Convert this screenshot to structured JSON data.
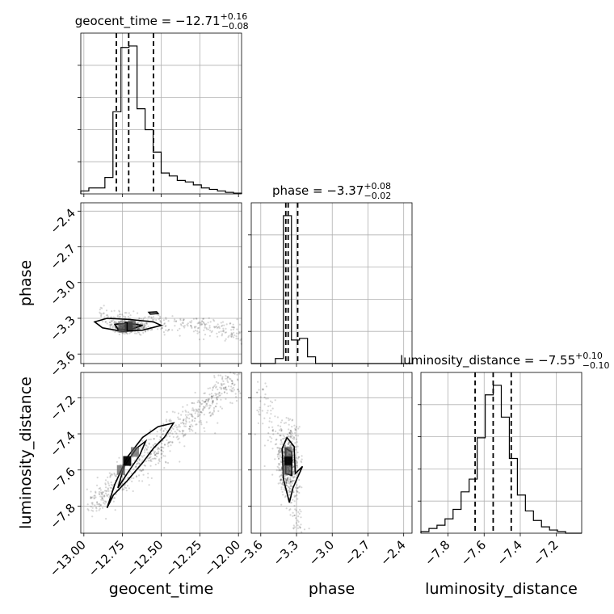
{
  "chart_data": {
    "type": "corner",
    "parameters": [
      "geocent_time",
      "phase",
      "luminosity_distance"
    ],
    "axis_ranges": {
      "geocent_time": [
        -13.02,
        -11.98
      ],
      "phase": [
        -3.68,
        -2.33
      ],
      "luminosity_distance": [
        -7.95,
        -7.06
      ]
    },
    "ticks": {
      "geocent_time": [
        -13.0,
        -12.75,
        -12.5,
        -12.25,
        -12.0
      ],
      "phase": [
        -3.6,
        -3.3,
        -3.0,
        -2.7,
        -2.4
      ],
      "luminosity_distance": [
        -7.8,
        -7.6,
        -7.4,
        -7.2
      ]
    },
    "tick_labels": {
      "geocent_time": [
        "−13.00",
        "−12.75",
        "−12.50",
        "−12.25",
        "−12.00"
      ],
      "phase": [
        "−3.6",
        "−3.3",
        "−3.0",
        "−2.7",
        "−2.4"
      ],
      "luminosity_distance": [
        "−7.8",
        "−7.6",
        "−7.4",
        "−7.2"
      ]
    },
    "axis_labels": {
      "geocent_time": "geocent_time",
      "phase": "phase",
      "luminosity_distance": "luminosity_distance"
    },
    "titles": [
      {
        "param": "geocent_time",
        "prefix": "geocent_time = −12.71",
        "plus": "+0.16",
        "minus": "−0.08"
      },
      {
        "param": "phase",
        "prefix": "phase = −3.37",
        "plus": "+0.08",
        "minus": "−0.02"
      },
      {
        "param": "luminosity_distance",
        "prefix": "luminosity_distance = −7.55",
        "plus": "+0.10",
        "minus": "−0.10"
      }
    ],
    "quantiles": {
      "geocent_time": [
        -12.79,
        -12.71,
        -12.55
      ],
      "phase": [
        -3.39,
        -3.37,
        -3.29
      ],
      "luminosity_distance": [
        -7.65,
        -7.55,
        -7.45
      ]
    },
    "histograms": {
      "geocent_time": {
        "bin_edges": [
          -13.02,
          -12.968,
          -12.916,
          -12.864,
          -12.812,
          -12.76,
          -12.708,
          -12.656,
          -12.604,
          -12.552,
          -12.5,
          -12.448,
          -12.396,
          -12.344,
          -12.292,
          -12.24,
          -12.188,
          -12.136,
          -12.084,
          -12.032,
          -11.98
        ],
        "counts": [
          0.02,
          0.04,
          0.04,
          0.11,
          0.55,
          0.98,
          0.99,
          0.57,
          0.43,
          0.28,
          0.14,
          0.12,
          0.09,
          0.08,
          0.06,
          0.04,
          0.03,
          0.02,
          0.01,
          0.005
        ]
      },
      "phase": {
        "bin_edges": [
          -3.68,
          -3.6125,
          -3.545,
          -3.4775,
          -3.41,
          -3.3425,
          -3.275,
          -3.2075,
          -3.14,
          -3.0725,
          -3.005,
          -2.9375,
          -2.87,
          -2.8025,
          -2.735,
          -2.6675,
          -2.6,
          -2.5325,
          -2.465,
          -2.3975,
          -2.33
        ],
        "counts": [
          0.0,
          0.0,
          0.0,
          0.03,
          0.88,
          0.14,
          0.15,
          0.04,
          0.0,
          0.0,
          0.0,
          0.0,
          0.0,
          0.0,
          0.0,
          0.0,
          0.0,
          0.0,
          0.0,
          0.0
        ]
      },
      "luminosity_distance": {
        "bin_edges": [
          -7.95,
          -7.9055,
          -7.861,
          -7.8165,
          -7.772,
          -7.7275,
          -7.683,
          -7.6385,
          -7.594,
          -7.5495,
          -7.505,
          -7.4605,
          -7.416,
          -7.3715,
          -7.327,
          -7.2825,
          -7.238,
          -7.1935,
          -7.149,
          -7.1045,
          -7.06
        ],
        "counts": [
          0.01,
          0.03,
          0.05,
          0.09,
          0.15,
          0.26,
          0.34,
          0.6,
          0.87,
          0.93,
          0.73,
          0.47,
          0.24,
          0.14,
          0.08,
          0.04,
          0.02,
          0.01,
          0.0,
          0.0
        ]
      }
    },
    "density_peaks": [
      {
        "x_param": "geocent_time",
        "y_param": "phase",
        "points": [
          [
            -12.71,
            -3.37
          ],
          [
            -12.75,
            -3.38
          ],
          [
            -12.69,
            -3.36
          ]
        ]
      },
      {
        "x_param": "geocent_time",
        "y_param": "luminosity_distance",
        "points": [
          [
            -12.72,
            -7.55
          ],
          [
            -12.76,
            -7.6
          ],
          [
            -12.67,
            -7.5
          ]
        ]
      },
      {
        "x_param": "phase",
        "y_param": "luminosity_distance",
        "points": [
          [
            -3.37,
            -7.55
          ],
          [
            -3.38,
            -7.6
          ],
          [
            -3.37,
            -7.5
          ]
        ]
      }
    ],
    "grid": true,
    "legend": "none"
  }
}
